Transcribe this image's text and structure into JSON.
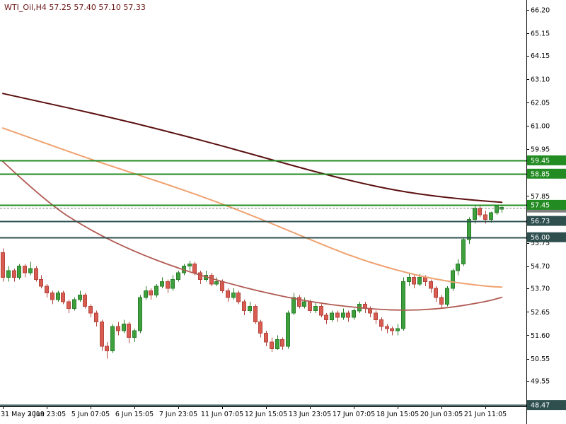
{
  "chart_data": {
    "type": "candlestick",
    "title": "WTI_Oil,H4 57.25 57.40 57.10 57.33",
    "symbol": "WTI_Oil",
    "timeframe": "H4",
    "ohlc": {
      "open": "57.25",
      "high": "57.40",
      "low": "57.10",
      "close": "57.33"
    },
    "y_axis": {
      "price_at_top": 66.645,
      "price_at_bottom": 48.41,
      "tick_labels": [
        "66.20",
        "65.15",
        "64.15",
        "63.10",
        "62.05",
        "61.00",
        "59.95",
        "57.85",
        "55.75",
        "54.70",
        "53.70",
        "52.65",
        "51.60",
        "50.55",
        "49.55"
      ]
    },
    "x_axis": {
      "bars_per_label": 8,
      "labels": [
        "31 May 2019",
        "3 Jun 23:05",
        "5 Jun 07:05",
        "6 Jun 15:05",
        "7 Jun 23:05",
        "11 Jun 07:05",
        "12 Jun 15:05",
        "13 Jun 23:05",
        "17 Jun 07:05",
        "18 Jun 15:05",
        "20 Jun 03:05",
        "21 Jun 11:05"
      ]
    },
    "levels": [
      {
        "value": 59.45,
        "label": "59.45",
        "color": "#228b22",
        "width": 2
      },
      {
        "value": 58.85,
        "label": "58.85",
        "color": "#228b22",
        "width": 2
      },
      {
        "value": 57.45,
        "label": "57.45",
        "color": "#228b22",
        "width": 2
      },
      {
        "value": 56.73,
        "label": "56.73",
        "color": "#2f4f4f",
        "width": 1.6
      },
      {
        "value": 56.0,
        "label": "56.00",
        "color": "#2f4f4f",
        "width": 1.6
      },
      {
        "value": 48.47,
        "label": "48.47",
        "color": "#2f4f4f",
        "width": 1.6
      }
    ],
    "current_price": {
      "value": 57.33,
      "label": "57.33",
      "color": "#808080"
    },
    "colors": {
      "background": "#ffffff",
      "axis_text": "#000000",
      "axis_line": "#000000",
      "title_text": "#6b1212",
      "candle_up_fill": "#3da03d",
      "candle_up_stroke": "#2a7e2a",
      "candle_down_fill": "#d95c52",
      "candle_down_stroke": "#b4453c"
    },
    "ma_lines": [
      {
        "name": "ma-dark-red",
        "color": "#5c1010",
        "width": 2,
        "points": [
          [
            0,
            62.45
          ],
          [
            8,
            62.02
          ],
          [
            16,
            61.58
          ],
          [
            24,
            61.12
          ],
          [
            32,
            60.62
          ],
          [
            40,
            60.1
          ],
          [
            48,
            59.55
          ],
          [
            56,
            59.0
          ],
          [
            64,
            58.5
          ],
          [
            72,
            58.08
          ],
          [
            80,
            57.8
          ],
          [
            88,
            57.62
          ],
          [
            91,
            57.57
          ]
        ]
      },
      {
        "name": "ma-orange",
        "color": "#efa270",
        "width": 2,
        "points": [
          [
            0,
            60.9
          ],
          [
            8,
            60.2
          ],
          [
            16,
            59.5
          ],
          [
            24,
            58.85
          ],
          [
            32,
            58.2
          ],
          [
            40,
            57.5
          ],
          [
            48,
            56.72
          ],
          [
            56,
            55.9
          ],
          [
            64,
            55.1
          ],
          [
            72,
            54.5
          ],
          [
            80,
            54.05
          ],
          [
            88,
            53.8
          ],
          [
            91,
            53.76
          ]
        ]
      },
      {
        "name": "ma-brown",
        "color": "#b15a52",
        "width": 1.8,
        "points": [
          [
            0,
            59.4
          ],
          [
            8,
            57.55
          ],
          [
            16,
            56.3
          ],
          [
            24,
            55.35
          ],
          [
            32,
            54.6
          ],
          [
            40,
            54.0
          ],
          [
            48,
            53.5
          ],
          [
            56,
            53.1
          ],
          [
            64,
            52.85
          ],
          [
            72,
            52.7
          ],
          [
            80,
            52.78
          ],
          [
            88,
            53.1
          ],
          [
            91,
            53.3
          ]
        ]
      }
    ],
    "candles": [
      [
        55.3,
        55.5,
        54.0,
        54.2
      ],
      [
        54.2,
        54.7,
        54.0,
        54.5
      ],
      [
        54.5,
        54.6,
        54.0,
        54.2
      ],
      [
        54.2,
        54.8,
        54.1,
        54.7
      ],
      [
        54.7,
        54.8,
        54.2,
        54.4
      ],
      [
        54.4,
        54.9,
        54.3,
        54.6
      ],
      [
        54.6,
        54.7,
        54.0,
        54.1
      ],
      [
        54.1,
        54.3,
        53.7,
        53.8
      ],
      [
        53.8,
        53.9,
        53.3,
        53.5
      ],
      [
        53.5,
        53.6,
        53.0,
        53.2
      ],
      [
        53.2,
        53.6,
        53.1,
        53.5
      ],
      [
        53.5,
        53.6,
        53.0,
        53.1
      ],
      [
        53.1,
        53.2,
        52.6,
        52.8
      ],
      [
        52.8,
        53.3,
        52.7,
        53.2
      ],
      [
        53.2,
        53.6,
        53.1,
        53.4
      ],
      [
        53.4,
        53.5,
        52.8,
        52.9
      ],
      [
        52.9,
        53.0,
        52.4,
        52.6
      ],
      [
        52.6,
        52.7,
        52.0,
        52.2
      ],
      [
        52.2,
        52.3,
        50.9,
        51.1
      ],
      [
        51.1,
        51.3,
        50.55,
        50.9
      ],
      [
        50.9,
        52.1,
        50.8,
        52.0
      ],
      [
        52.0,
        52.2,
        51.6,
        51.8
      ],
      [
        51.8,
        52.3,
        51.7,
        52.1
      ],
      [
        52.1,
        52.2,
        51.25,
        51.5
      ],
      [
        51.5,
        51.9,
        51.3,
        51.8
      ],
      [
        51.8,
        53.4,
        51.7,
        53.3
      ],
      [
        53.3,
        53.8,
        53.2,
        53.6
      ],
      [
        53.6,
        53.7,
        53.2,
        53.4
      ],
      [
        53.4,
        53.9,
        53.3,
        53.8
      ],
      [
        53.8,
        54.2,
        53.7,
        54.0
      ],
      [
        54.0,
        54.1,
        53.5,
        53.7
      ],
      [
        53.7,
        54.3,
        53.6,
        54.1
      ],
      [
        54.1,
        54.5,
        54.0,
        54.4
      ],
      [
        54.4,
        54.8,
        54.3,
        54.7
      ],
      [
        54.7,
        54.95,
        54.5,
        54.8
      ],
      [
        54.8,
        54.9,
        54.3,
        54.4
      ],
      [
        54.4,
        54.5,
        53.9,
        54.1
      ],
      [
        54.1,
        54.5,
        54.0,
        54.3
      ],
      [
        54.3,
        54.4,
        53.8,
        53.9
      ],
      [
        53.9,
        54.2,
        53.8,
        54.0
      ],
      [
        54.0,
        54.1,
        53.5,
        53.6
      ],
      [
        53.6,
        53.7,
        53.1,
        53.3
      ],
      [
        53.3,
        53.7,
        53.2,
        53.5
      ],
      [
        53.5,
        53.6,
        53.0,
        53.1
      ],
      [
        53.1,
        53.2,
        52.5,
        52.7
      ],
      [
        52.7,
        53.1,
        52.6,
        52.9
      ],
      [
        52.9,
        53.0,
        52.1,
        52.2
      ],
      [
        52.2,
        52.3,
        51.5,
        51.7
      ],
      [
        51.7,
        51.8,
        51.1,
        51.3
      ],
      [
        51.3,
        51.5,
        50.85,
        51.0
      ],
      [
        51.0,
        51.6,
        50.95,
        51.4
      ],
      [
        51.4,
        51.5,
        50.95,
        51.1
      ],
      [
        51.1,
        52.7,
        51.0,
        52.6
      ],
      [
        52.6,
        53.5,
        52.5,
        53.3
      ],
      [
        53.3,
        53.4,
        52.8,
        52.9
      ],
      [
        52.9,
        53.3,
        52.8,
        53.1
      ],
      [
        53.1,
        53.2,
        52.6,
        52.7
      ],
      [
        52.7,
        53.1,
        52.6,
        52.9
      ],
      [
        52.9,
        53.0,
        52.4,
        52.5
      ],
      [
        52.5,
        52.6,
        52.1,
        52.3
      ],
      [
        52.3,
        52.7,
        52.2,
        52.6
      ],
      [
        52.6,
        52.7,
        52.2,
        52.4
      ],
      [
        52.4,
        52.8,
        52.3,
        52.6
      ],
      [
        52.6,
        52.7,
        52.2,
        52.4
      ],
      [
        52.4,
        52.8,
        52.3,
        52.7
      ],
      [
        52.7,
        53.1,
        52.6,
        53.0
      ],
      [
        53.0,
        53.1,
        52.6,
        52.8
      ],
      [
        52.8,
        52.9,
        52.4,
        52.6
      ],
      [
        52.6,
        52.7,
        52.1,
        52.3
      ],
      [
        52.3,
        52.4,
        51.8,
        52.0
      ],
      [
        52.0,
        52.1,
        51.7,
        51.9
      ],
      [
        51.9,
        52.0,
        51.6,
        51.8
      ],
      [
        51.8,
        52.1,
        51.6,
        51.9
      ],
      [
        51.9,
        54.2,
        51.8,
        54.0
      ],
      [
        54.0,
        54.4,
        53.8,
        54.2
      ],
      [
        54.2,
        54.3,
        53.7,
        53.9
      ],
      [
        53.9,
        54.35,
        53.8,
        54.2
      ],
      [
        54.2,
        54.3,
        53.8,
        54.0
      ],
      [
        54.0,
        54.1,
        53.5,
        53.7
      ],
      [
        53.7,
        53.8,
        53.1,
        53.3
      ],
      [
        53.3,
        53.4,
        52.8,
        53.0
      ],
      [
        53.0,
        53.8,
        52.9,
        53.7
      ],
      [
        53.7,
        54.6,
        53.6,
        54.5
      ],
      [
        54.5,
        55.0,
        54.3,
        54.8
      ],
      [
        54.8,
        56.0,
        54.7,
        55.9
      ],
      [
        55.9,
        56.9,
        55.7,
        56.8
      ],
      [
        56.8,
        57.4,
        56.6,
        57.3
      ],
      [
        57.3,
        57.45,
        56.9,
        57.0
      ],
      [
        57.0,
        57.2,
        56.6,
        56.8
      ],
      [
        56.8,
        57.15,
        56.65,
        57.1
      ],
      [
        57.1,
        57.45,
        57.0,
        57.4
      ],
      [
        57.25,
        57.4,
        57.1,
        57.33
      ]
    ]
  }
}
